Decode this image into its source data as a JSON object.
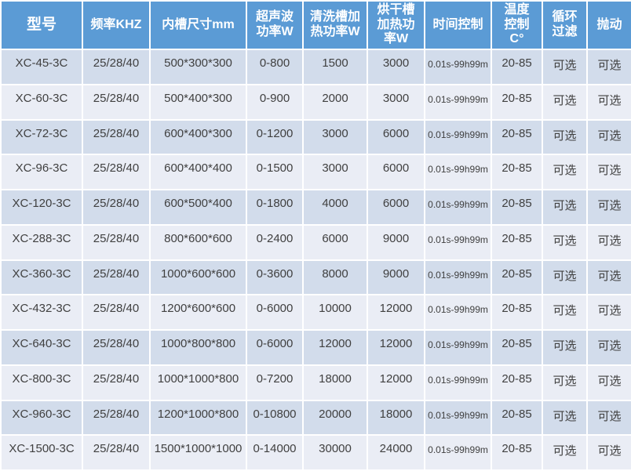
{
  "colors": {
    "header_bg": "#5b9bd5",
    "header_text": "#ffffff",
    "row_odd_bg": "#d2dceb",
    "row_even_bg": "#eaedf5",
    "body_text": "#404040",
    "grid": "#ffffff"
  },
  "table": {
    "columns": [
      {
        "key": "model",
        "label": "型号"
      },
      {
        "key": "frequency-khz",
        "label": "频率KHZ"
      },
      {
        "key": "tank-size-mm",
        "label": "内槽尺寸mm"
      },
      {
        "key": "ultrasonic-power-w",
        "label": "超声波\n功率W"
      },
      {
        "key": "cleaning-tank-heat-power-w",
        "label": "清洗槽加\n热功率W"
      },
      {
        "key": "drying-tank-heat-power-w",
        "label": "烘干槽\n加热功\n率W"
      },
      {
        "key": "time-control",
        "label": "时间控制"
      },
      {
        "key": "temp-control-c",
        "label": "温度\n控制\nC°"
      },
      {
        "key": "circulation-filter",
        "label": "循环\n过滤"
      },
      {
        "key": "agitation",
        "label": "抛动"
      }
    ],
    "rows": [
      {
        "cells": [
          "XC-45-3C",
          "25/28/40",
          "500*300*300",
          "0-800",
          "1500",
          "3000",
          "0.01s-99h99m",
          "20-85",
          "可选",
          "可选"
        ]
      },
      {
        "cells": [
          "XC-60-3C",
          "25/28/40",
          "500*400*300",
          "0-900",
          "2000",
          "3000",
          "0.01s-99h99m",
          "20-85",
          "可选",
          "可选"
        ]
      },
      {
        "cells": [
          "XC-72-3C",
          "25/28/40",
          "600*400*300",
          "0-1200",
          "3000",
          "6000",
          "0.01s-99h99m",
          "20-85",
          "可选",
          "可选"
        ]
      },
      {
        "cells": [
          "XC-96-3C",
          "25/28/40",
          "600*400*400",
          "0-1500",
          "3000",
          "6000",
          "0.01s-99h99m",
          "20-85",
          "可选",
          "可选"
        ]
      },
      {
        "cells": [
          "XC-120-3C",
          "25/28/40",
          "600*500*400",
          "0-1800",
          "4000",
          "6000",
          "0.01s-99h99m",
          "20-85",
          "可选",
          "可选"
        ]
      },
      {
        "cells": [
          "XC-288-3C",
          "25/28/40",
          "800*600*600",
          "0-2400",
          "6000",
          "9000",
          "0.01s-99h99m",
          "20-85",
          "可选",
          "可选"
        ]
      },
      {
        "cells": [
          "XC-360-3C",
          "25/28/40",
          "1000*600*600",
          "0-3600",
          "8000",
          "9000",
          "0.01s-99h99m",
          "20-85",
          "可选",
          "可选"
        ]
      },
      {
        "cells": [
          "XC-432-3C",
          "25/28/40",
          "1200*600*600",
          "0-6000",
          "10000",
          "12000",
          "0.01s-99h99m",
          "20-85",
          "可选",
          "可选"
        ]
      },
      {
        "cells": [
          "XC-640-3C",
          "25/28/40",
          "1000*800*800",
          "0-6000",
          "12000",
          "12000",
          "0.01s-99h99m",
          "20-85",
          "可选",
          "可选"
        ]
      },
      {
        "cells": [
          "XC-800-3C",
          "25/28/40",
          "1000*1000*800",
          "0-7200",
          "18000",
          "12000",
          "0.01s-99h99m",
          "20-85",
          "可选",
          "可选"
        ]
      },
      {
        "cells": [
          "XC-960-3C",
          "25/28/40",
          "1200*1000*800",
          "0-10800",
          "20000",
          "18000",
          "0.01s-99h99m",
          "20-85",
          "可选",
          "可选"
        ]
      },
      {
        "cells": [
          "XC-1500-3C",
          "25/28/40",
          "1500*1000*1000",
          "0-14000",
          "30000",
          "24000",
          "0.01s-99h99m",
          "20-85",
          "可选",
          "可选"
        ]
      }
    ]
  }
}
